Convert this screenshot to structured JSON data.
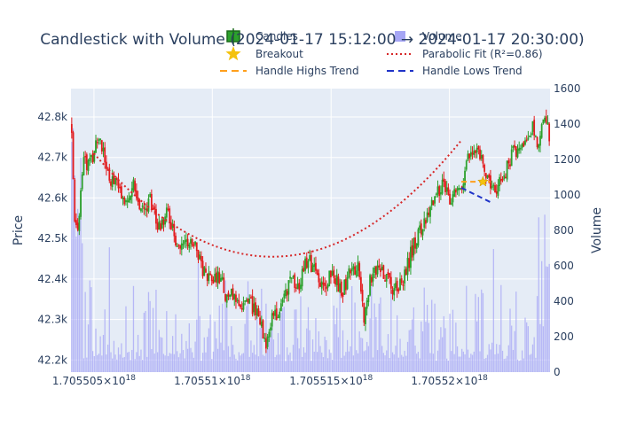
{
  "chart_data": {
    "type": "candlestick",
    "title": "Candlestick with Volume (2024-01-17 15:12:00 → 2024-01-17 20:30:00)",
    "ylabel": "Price",
    "y2label": "Volume",
    "ylim": [
      42170,
      42870
    ],
    "y2lim": [
      0,
      1600
    ],
    "y_ticks": [
      {
        "value": 42200,
        "label": "42.2k"
      },
      {
        "value": 42300,
        "label": "42.3k"
      },
      {
        "value": 42400,
        "label": "42.4k"
      },
      {
        "value": 42500,
        "label": "42.5k"
      },
      {
        "value": 42600,
        "label": "42.6k"
      },
      {
        "value": 42700,
        "label": "42.7k"
      },
      {
        "value": 42800,
        "label": "42.8k"
      }
    ],
    "y2_ticks": [
      0,
      200,
      400,
      600,
      800,
      1000,
      1200,
      1400,
      1600
    ],
    "x_ticks": [
      {
        "fraction": 0.048,
        "mantissa": "1.705505",
        "exponent": "18"
      },
      {
        "fraction": 0.295,
        "mantissa": "1.70551",
        "exponent": "18"
      },
      {
        "fraction": 0.543,
        "mantissa": "1.705515",
        "exponent": "18"
      },
      {
        "fraction": 0.79,
        "mantissa": "1.70552",
        "exponent": "18"
      }
    ],
    "x_times_label_prefix": "×10",
    "legend": [
      {
        "name": "Candles",
        "marker": "candle"
      },
      {
        "name": "Volume",
        "marker": "volume"
      },
      {
        "name": "Breakout",
        "marker": "star"
      },
      {
        "name": "Parabolic Fit (R²=0.86)",
        "marker": "dotted-red"
      },
      {
        "name": "Handle Highs Trend",
        "marker": "dash-orange"
      },
      {
        "name": "Handle Lows Trend",
        "marker": "dash-blue"
      }
    ],
    "n_candles": 318,
    "price_keypoints": [
      [
        0,
        42780
      ],
      [
        2,
        42560
      ],
      [
        4,
        42500
      ],
      [
        8,
        42680
      ],
      [
        14,
        42700
      ],
      [
        20,
        42750
      ],
      [
        26,
        42650
      ],
      [
        32,
        42630
      ],
      [
        38,
        42600
      ],
      [
        44,
        42630
      ],
      [
        50,
        42560
      ],
      [
        56,
        42600
      ],
      [
        62,
        42530
      ],
      [
        68,
        42560
      ],
      [
        74,
        42500
      ],
      [
        80,
        42480
      ],
      [
        86,
        42500
      ],
      [
        90,
        42460
      ],
      [
        96,
        42400
      ],
      [
        100,
        42390
      ],
      [
        106,
        42410
      ],
      [
        110,
        42340
      ],
      [
        116,
        42370
      ],
      [
        120,
        42330
      ],
      [
        126,
        42360
      ],
      [
        130,
        42320
      ],
      [
        134,
        42300
      ],
      [
        138,
        42240
      ],
      [
        142,
        42300
      ],
      [
        148,
        42330
      ],
      [
        156,
        42400
      ],
      [
        162,
        42390
      ],
      [
        168,
        42450
      ],
      [
        174,
        42410
      ],
      [
        180,
        42380
      ],
      [
        186,
        42420
      ],
      [
        192,
        42360
      ],
      [
        198,
        42420
      ],
      [
        204,
        42430
      ],
      [
        208,
        42310
      ],
      [
        212,
        42390
      ],
      [
        218,
        42420
      ],
      [
        224,
        42400
      ],
      [
        230,
        42370
      ],
      [
        236,
        42390
      ],
      [
        242,
        42470
      ],
      [
        248,
        42520
      ],
      [
        254,
        42560
      ],
      [
        258,
        42600
      ],
      [
        264,
        42630
      ],
      [
        270,
        42590
      ],
      [
        276,
        42620
      ],
      [
        282,
        42690
      ],
      [
        286,
        42730
      ],
      [
        290,
        42700
      ],
      [
        296,
        42650
      ],
      [
        302,
        42620
      ],
      [
        306,
        42640
      ],
      [
        310,
        42680
      ],
      [
        316,
        42720
      ],
      [
        322,
        42730
      ],
      [
        328,
        42780
      ],
      [
        332,
        42720
      ],
      [
        336,
        42790
      ],
      [
        340,
        42760
      ]
    ],
    "parabola": {
      "start_frac": 0.048,
      "end_frac": 0.815,
      "vertex_frac": 0.42,
      "vertex_y": 42455,
      "start_y": 42710,
      "end_y": 42710
    },
    "handle_highs": [
      [
        0.815,
        42640
      ],
      [
        0.875,
        42640
      ]
    ],
    "handle_lows": [
      [
        0.815,
        42625
      ],
      [
        0.875,
        42590
      ]
    ],
    "breakout": {
      "frac": 0.86,
      "y": 42640
    },
    "colors": {
      "up": "#2ca02c",
      "up_fill": "#2ca02c",
      "down": "#e31a1c",
      "down_fill": "#e31a1c",
      "volume": "#a6a6f5",
      "parabola": "#d62728",
      "handle_highs": "#ff9f1c",
      "handle_lows": "#1f33c8",
      "breakout": "#f4c20d",
      "plot_bg": "#e5ecf6",
      "grid": "#ffffff"
    }
  }
}
